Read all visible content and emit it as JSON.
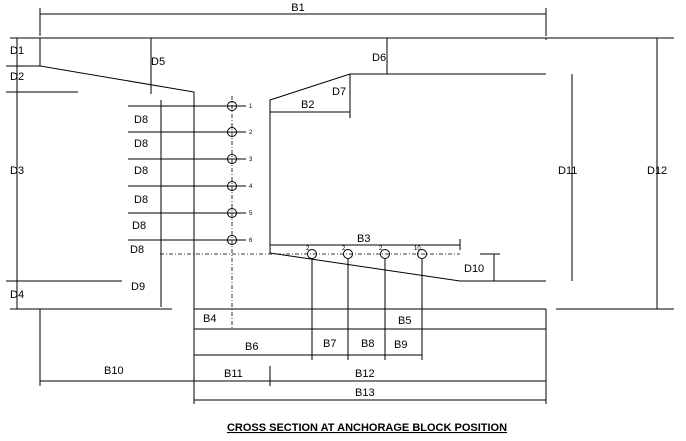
{
  "title": "CROSS SECTION AT ANCHORAGE BLOCK POSITION",
  "dimensions": {
    "B1": "B1",
    "B2": "B2",
    "B3": "B3",
    "B4": "B4",
    "B5": "B5",
    "B6": "B6",
    "B7": "B7",
    "B8": "B8",
    "B9": "B9",
    "B10": "B10",
    "B11": "B11",
    "B12": "B12",
    "B13": "B13",
    "D1": "D1",
    "D2": "D2",
    "D3": "D3",
    "D4": "D4",
    "D5": "D5",
    "D6": "D6",
    "D7": "D7",
    "D8": "D8",
    "D9": "D9",
    "D10": "D10",
    "D11": "D11",
    "D12": "D12"
  },
  "tendon_left_labels": [
    "1",
    "2",
    "3",
    "4",
    "5",
    "6"
  ],
  "tendon_bottom_labels": [
    "2",
    "2",
    "2",
    "10"
  ]
}
